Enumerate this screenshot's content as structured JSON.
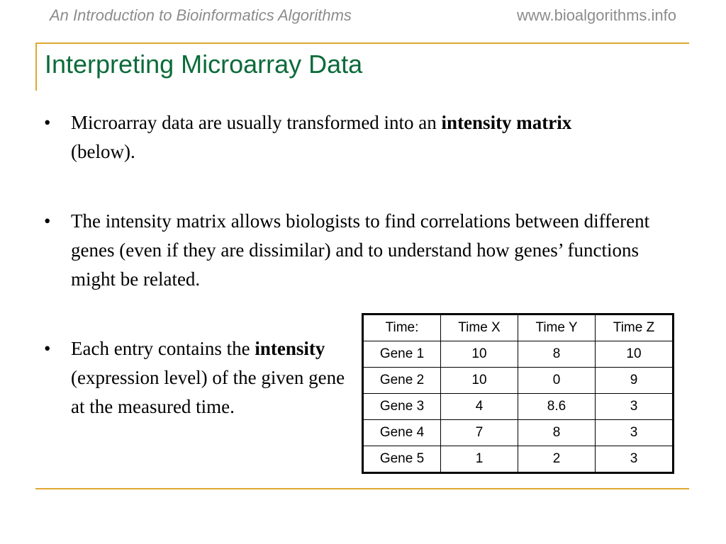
{
  "header": {
    "book": "An Introduction to Bioinformatics Algorithms",
    "url": "www.bioalgorithms.info"
  },
  "title": "Interpreting Microarray Data",
  "bullets": [
    {
      "runs": [
        {
          "text": "Microarray data are usually transformed into an "
        },
        {
          "text": "intensity matrix",
          "bold": true
        },
        {
          "text": " (below)."
        }
      ]
    },
    {
      "runs": [
        {
          "text": "The intensity matrix allows biologists to find correlations between different genes (even if they are dissimilar) and to understand how genes’ functions might be related."
        }
      ]
    },
    {
      "runs": [
        {
          "text": "Each entry contains the "
        },
        {
          "text": "intensity",
          "bold": true
        },
        {
          "text": " (expression level) of the given gene at the measured time."
        }
      ]
    }
  ],
  "table": {
    "header": [
      "Time:",
      "Time X",
      "Time Y",
      "Time Z"
    ],
    "rows": [
      [
        "Gene 1",
        10,
        8,
        10
      ],
      [
        "Gene 2",
        10,
        0,
        9
      ],
      [
        "Gene 3",
        4,
        8.6,
        3
      ],
      [
        "Gene 4",
        7,
        8,
        3
      ],
      [
        "Gene 5",
        1,
        2,
        3
      ]
    ]
  }
}
